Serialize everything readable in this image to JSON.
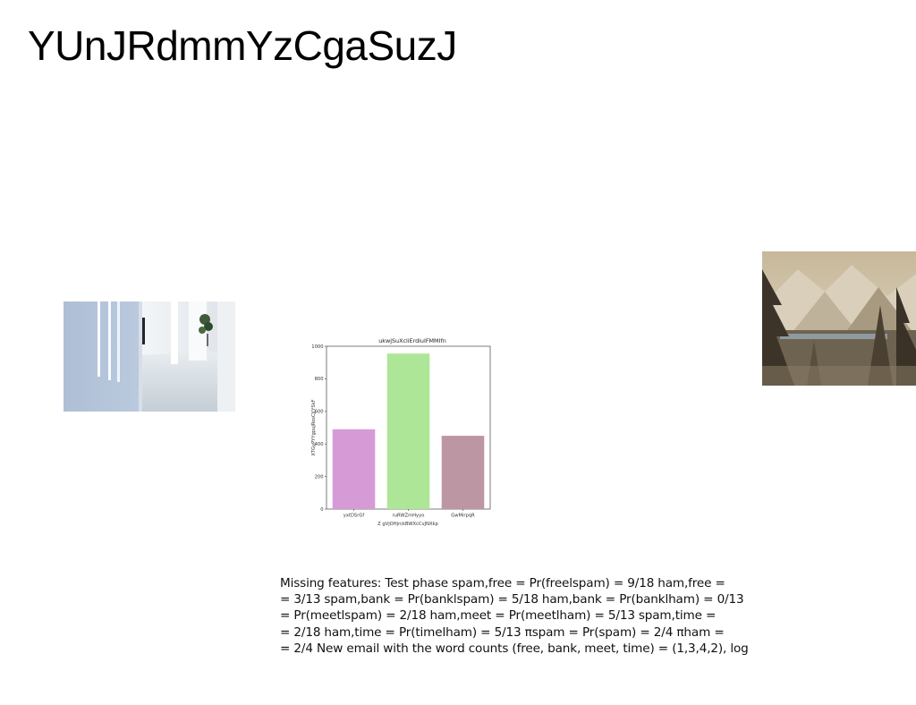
{
  "page": {
    "title": "YUnJRdmmYzCgaSuzJ"
  },
  "images": {
    "hallway": "white-hallway-photo",
    "mountains": "snowy-mountain-forest-photo"
  },
  "chart_data": {
    "type": "bar",
    "title": "ukwjSuXcliErdiuIFMMIfn",
    "xlabel": "Z gVjOHjrckBWXcCvJNXkp",
    "ylabel": "XTGyPYYgpujRosCJ(YSkF",
    "categories": [
      "yxtDSrGf",
      "ruRWZmHyyo",
      "GwMirpqR"
    ],
    "values": [
      490,
      955,
      450
    ],
    "colors": [
      "#d69ad6",
      "#aee697",
      "#bd96a3"
    ],
    "ylim": [
      0,
      1000
    ],
    "yticks": [
      "0",
      "200",
      "400",
      "600",
      "800",
      "1000"
    ],
    "grid": false
  },
  "text": {
    "lines": [
      "Missing features: Test phase \u001bspam,free = Pr(freelspam) = 9/18 \u001bham,free =",
      "= 3/13 \u001bspam,bank = Pr(banklspam) = 5/18 \u001bham,bank = Pr(banklham) = 0/13",
      "= Pr(meetlspam) = 2/18 \u001bham,meet = Pr(meetlham) = 5/13 \u001bspam,time =",
      "= 2/18 \u001bham,time = Pr(timelham) = 5/13 πspam = Pr(spam) = 2/4 πham =",
      "= 2/4 New email with the word counts (free, bank, meet, time) = (1,3,4,2), log"
    ]
  }
}
